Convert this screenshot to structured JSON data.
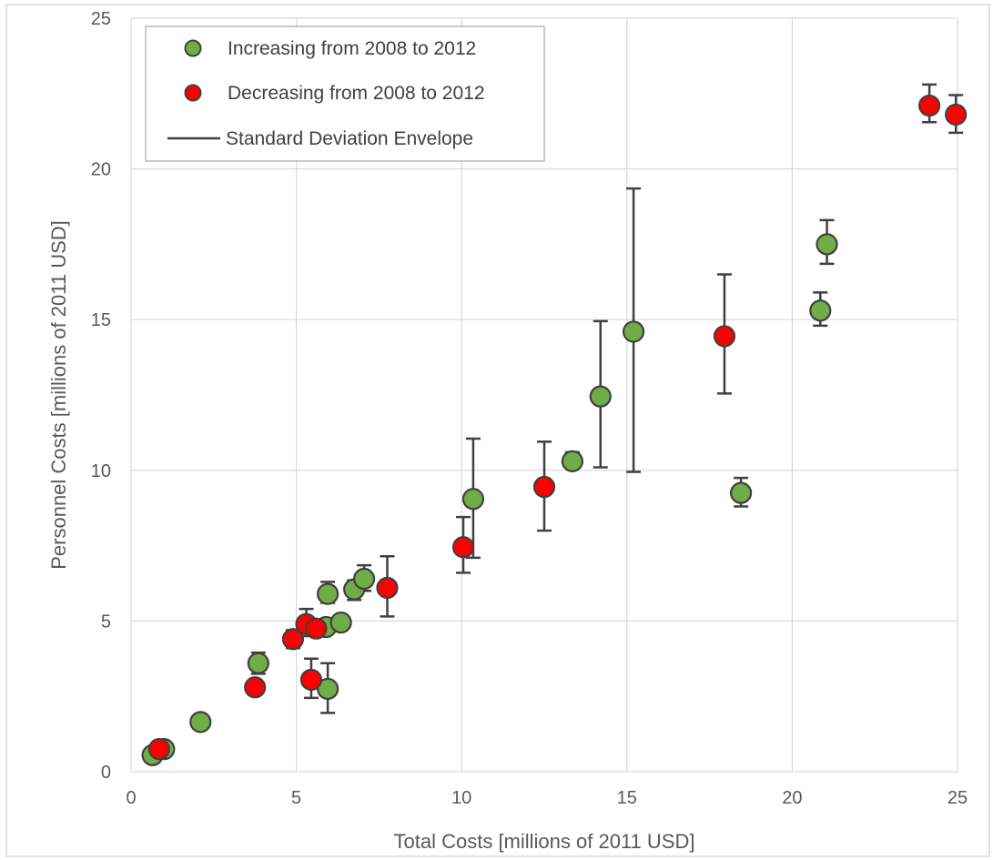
{
  "chart_data": {
    "type": "scatter",
    "title": "",
    "xlabel": "Total Costs [millions of 2011 USD]",
    "ylabel": "Personnel Costs [millions of 2011 USD]",
    "xlim": [
      0,
      25
    ],
    "ylim": [
      0,
      25
    ],
    "xticks": [
      "0",
      "5",
      "10",
      "15",
      "20",
      "25"
    ],
    "yticks": [
      "0",
      "5",
      "10",
      "15",
      "20",
      "25"
    ],
    "grid": true,
    "legend_position": "top-left",
    "colors": {
      "increasing": "#70ad47",
      "decreasing": "#ff0000",
      "marker_edge": "#404040",
      "error_bar": "#404040",
      "grid": "#d9d9d9"
    },
    "legend": [
      {
        "key": "increasing",
        "label": "Increasing from 2008 to 2012",
        "kind": "marker"
      },
      {
        "key": "decreasing",
        "label": "Decreasing from 2008 to 2012",
        "kind": "marker"
      },
      {
        "key": "stddev",
        "label": "Standard Deviation Envelope",
        "kind": "line"
      }
    ],
    "series": [
      {
        "key": "increasing",
        "points": [
          {
            "x": 0.65,
            "y": 0.55
          },
          {
            "x": 1.0,
            "y": 0.75
          },
          {
            "x": 2.1,
            "y": 1.65
          },
          {
            "x": 3.85,
            "y": 3.6,
            "low": 3.25,
            "high": 3.95
          },
          {
            "x": 5.95,
            "y": 2.75,
            "low": 1.95,
            "high": 3.6
          },
          {
            "x": 5.9,
            "y": 4.8
          },
          {
            "x": 6.35,
            "y": 4.95
          },
          {
            "x": 5.95,
            "y": 5.9,
            "low": 5.6,
            "high": 6.3
          },
          {
            "x": 6.75,
            "y": 6.05,
            "low": 5.7,
            "high": 6.35
          },
          {
            "x": 7.05,
            "y": 6.4,
            "low": 6.0,
            "high": 6.85
          },
          {
            "x": 10.35,
            "y": 9.05,
            "low": 7.1,
            "high": 11.05
          },
          {
            "x": 13.35,
            "y": 10.3,
            "low": 10.05,
            "high": 10.6
          },
          {
            "x": 14.2,
            "y": 12.45,
            "low": 10.1,
            "high": 14.95
          },
          {
            "x": 15.2,
            "y": 14.6,
            "low": 9.95,
            "high": 19.35
          },
          {
            "x": 18.45,
            "y": 9.25,
            "low": 8.8,
            "high": 9.75
          },
          {
            "x": 20.85,
            "y": 15.3,
            "low": 14.8,
            "high": 15.9
          },
          {
            "x": 21.05,
            "y": 17.5,
            "low": 16.85,
            "high": 18.3
          }
        ]
      },
      {
        "key": "decreasing",
        "points": [
          {
            "x": 0.85,
            "y": 0.75
          },
          {
            "x": 3.75,
            "y": 2.8
          },
          {
            "x": 4.9,
            "y": 4.4,
            "low": 4.1,
            "high": 4.7
          },
          {
            "x": 5.45,
            "y": 3.05,
            "low": 2.45,
            "high": 3.75
          },
          {
            "x": 5.3,
            "y": 4.9,
            "low": 4.5,
            "high": 5.4
          },
          {
            "x": 5.6,
            "y": 4.75
          },
          {
            "x": 7.75,
            "y": 6.1,
            "low": 5.15,
            "high": 7.15
          },
          {
            "x": 10.05,
            "y": 7.45,
            "low": 6.6,
            "high": 8.45
          },
          {
            "x": 12.5,
            "y": 9.45,
            "low": 8.0,
            "high": 10.95
          },
          {
            "x": 17.95,
            "y": 14.45,
            "low": 12.55,
            "high": 16.5
          },
          {
            "x": 24.15,
            "y": 22.1,
            "low": 21.55,
            "high": 22.8
          },
          {
            "x": 24.95,
            "y": 21.8,
            "low": 21.2,
            "high": 22.45
          }
        ]
      }
    ]
  }
}
